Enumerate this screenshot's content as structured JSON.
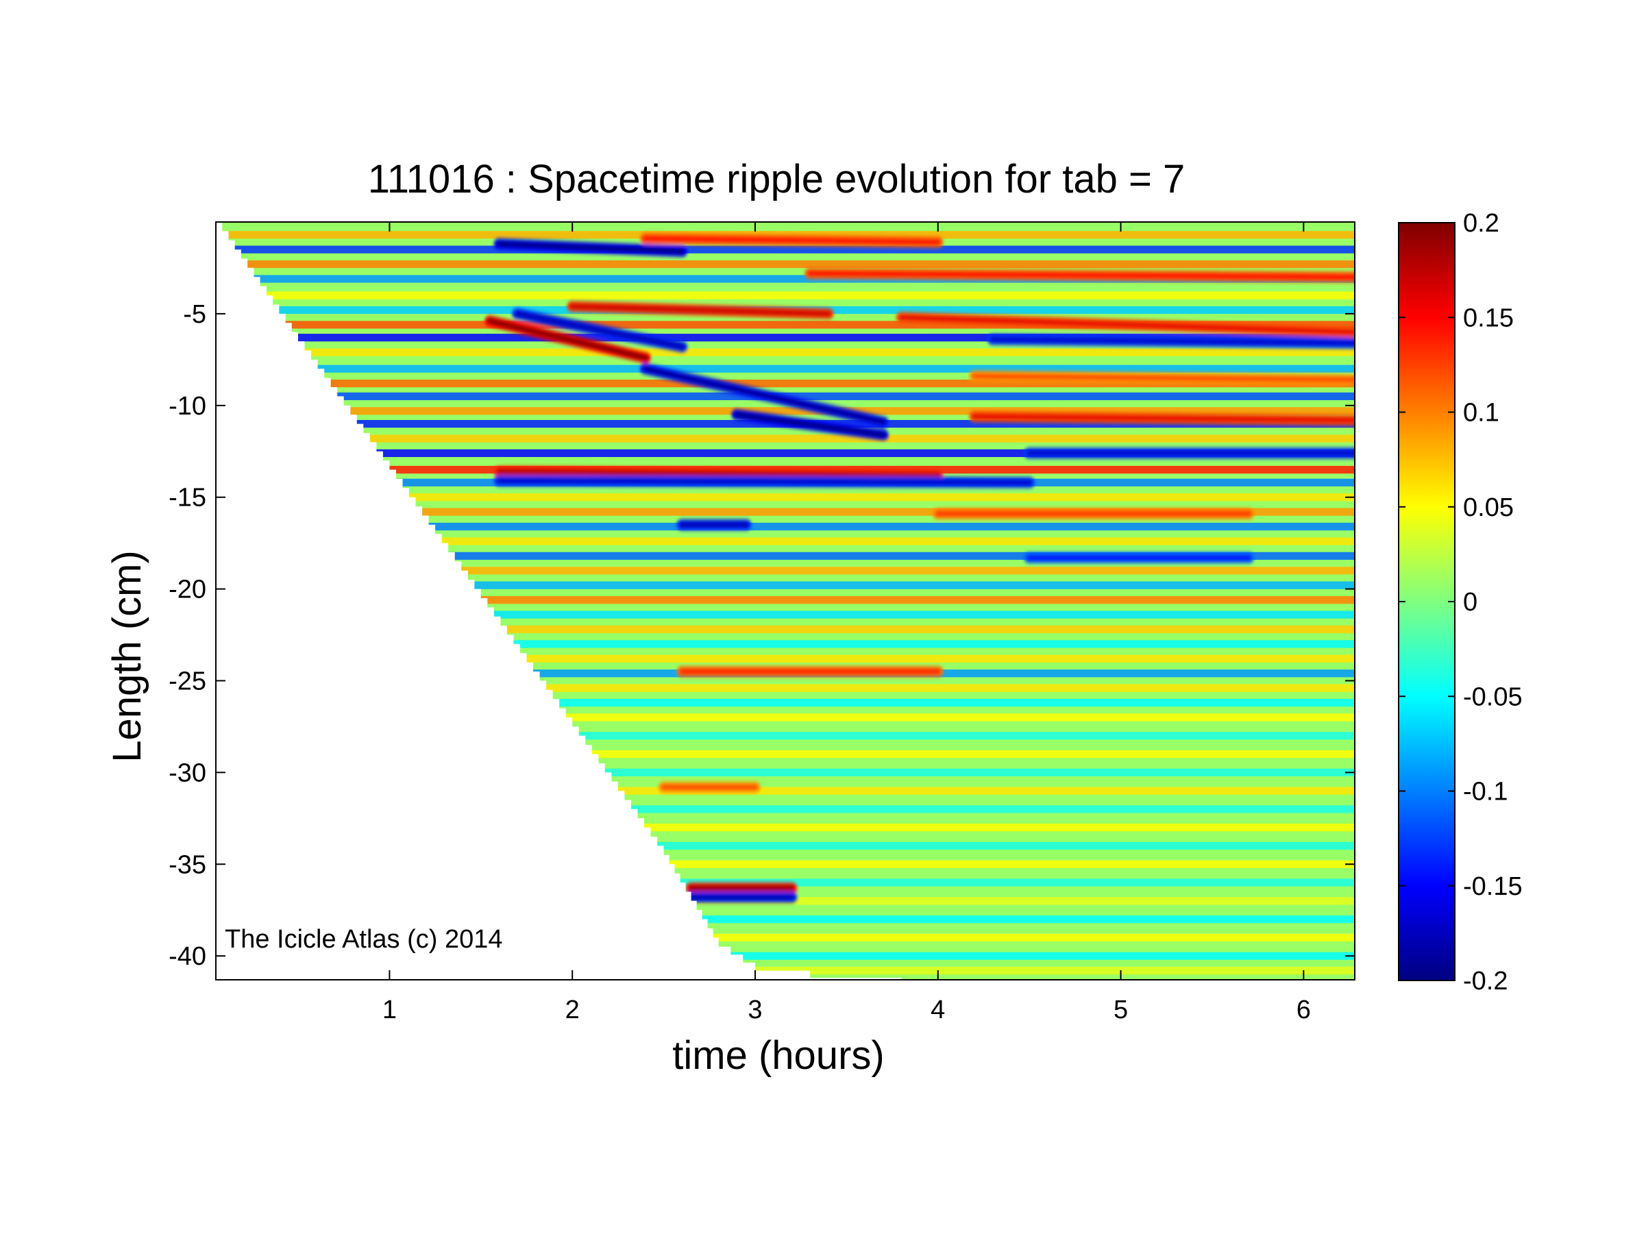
{
  "chart_data": {
    "type": "heatmap",
    "title": "111016 : Spacetime ripple evolution for tab = 7",
    "xlabel": "time (hours)",
    "ylabel": "Length (cm)",
    "xlim": [
      0.05,
      6.28
    ],
    "ylim": [
      -41.3,
      0
    ],
    "xticks": [
      1,
      2,
      3,
      4,
      5,
      6
    ],
    "yticks": [
      -5,
      -10,
      -15,
      -20,
      -25,
      -30,
      -35,
      -40
    ],
    "colormap": "jet",
    "clim": [
      -0.2,
      0.2
    ],
    "colorbar_ticks": [
      0.2,
      0.15,
      0.1,
      0.05,
      0,
      -0.05,
      -0.1,
      -0.15,
      -0.2
    ],
    "colorbar_tick_labels": [
      "0.2",
      "0.15",
      "0.1",
      "0.05",
      "0",
      "-0.05",
      "-0.1",
      "-0.15",
      "-0.2"
    ],
    "annotation": "The Icicle Atlas (c) 2014",
    "grid": false,
    "icicle_tip_front": {
      "time_hours": [
        0.05,
        0.5,
        1.0,
        1.5,
        2.0,
        2.5,
        2.65,
        2.8,
        3.0,
        3.3,
        3.8
      ],
      "length_cm": [
        0,
        -6.5,
        -13.5,
        -20.5,
        -27.5,
        -34.5,
        -37.0,
        -39.5,
        -40.8,
        -41.2,
        -41.3
      ]
    },
    "ripple_bands": [
      {
        "length_cm": -0.7,
        "amplitude": 0.08
      },
      {
        "length_cm": -1.5,
        "amplitude": -0.13
      },
      {
        "length_cm": -2.3,
        "amplitude": 0.1
      },
      {
        "length_cm": -3.1,
        "amplitude": -0.09
      },
      {
        "length_cm": -4.0,
        "amplitude": 0.05
      },
      {
        "length_cm": -4.8,
        "amplitude": -0.07
      },
      {
        "length_cm": -5.6,
        "amplitude": 0.12
      },
      {
        "length_cm": -6.3,
        "amplitude": -0.15
      },
      {
        "length_cm": -7.1,
        "amplitude": 0.06
      },
      {
        "length_cm": -8.0,
        "amplitude": -0.08
      },
      {
        "length_cm": -8.8,
        "amplitude": 0.11
      },
      {
        "length_cm": -9.5,
        "amplitude": -0.12
      },
      {
        "length_cm": -10.3,
        "amplitude": 0.09
      },
      {
        "length_cm": -11.0,
        "amplitude": -0.14
      },
      {
        "length_cm": -11.8,
        "amplitude": 0.07
      },
      {
        "length_cm": -12.6,
        "amplitude": -0.15
      },
      {
        "length_cm": -13.5,
        "amplitude": 0.14
      },
      {
        "length_cm": -14.2,
        "amplitude": -0.1
      },
      {
        "length_cm": -15.0,
        "amplitude": 0.06
      },
      {
        "length_cm": -15.8,
        "amplitude": 0.09
      },
      {
        "length_cm": -16.6,
        "amplitude": -0.1
      },
      {
        "length_cm": -17.4,
        "amplitude": 0.06
      },
      {
        "length_cm": -18.2,
        "amplitude": -0.11
      },
      {
        "length_cm": -19.0,
        "amplitude": 0.08
      },
      {
        "length_cm": -19.8,
        "amplitude": -0.08
      },
      {
        "length_cm": -20.6,
        "amplitude": 0.1
      },
      {
        "length_cm": -21.4,
        "amplitude": -0.06
      },
      {
        "length_cm": -22.2,
        "amplitude": 0.07
      },
      {
        "length_cm": -23.0,
        "amplitude": -0.05
      },
      {
        "length_cm": -23.8,
        "amplitude": 0.06
      },
      {
        "length_cm": -24.6,
        "amplitude": -0.09
      },
      {
        "length_cm": -25.4,
        "amplitude": 0.06
      },
      {
        "length_cm": -26.2,
        "amplitude": -0.05
      },
      {
        "length_cm": -27.0,
        "amplitude": 0.05
      },
      {
        "length_cm": -28.0,
        "amplitude": -0.04
      },
      {
        "length_cm": -29.0,
        "amplitude": 0.05
      },
      {
        "length_cm": -30.0,
        "amplitude": -0.04
      },
      {
        "length_cm": -31.0,
        "amplitude": 0.06
      },
      {
        "length_cm": -32.0,
        "amplitude": -0.04
      },
      {
        "length_cm": -33.0,
        "amplitude": 0.05
      },
      {
        "length_cm": -34.0,
        "amplitude": -0.04
      },
      {
        "length_cm": -35.0,
        "amplitude": 0.05
      },
      {
        "length_cm": -36.0,
        "amplitude": -0.04
      },
      {
        "length_cm": -37.0,
        "amplitude": 0.04
      },
      {
        "length_cm": -38.0,
        "amplitude": -0.05
      },
      {
        "length_cm": -39.0,
        "amplitude": 0.05
      },
      {
        "length_cm": -40.0,
        "amplitude": -0.05
      },
      {
        "length_cm": -40.8,
        "amplitude": 0.04
      }
    ],
    "ripple_streaks": [
      {
        "t_start": 1.55,
        "t_end": 2.4,
        "length_start_cm": -5.4,
        "length_end_cm": -7.4,
        "amplitude": 0.2
      },
      {
        "t_start": 1.7,
        "t_end": 2.6,
        "length_start_cm": -5.0,
        "length_end_cm": -6.8,
        "amplitude": -0.18
      },
      {
        "t_start": 2.0,
        "t_end": 3.4,
        "length_start_cm": -4.6,
        "length_end_cm": -5.0,
        "amplitude": 0.17
      },
      {
        "t_start": 2.4,
        "t_end": 3.7,
        "length_start_cm": -8.0,
        "length_end_cm": -10.9,
        "amplitude": -0.19
      },
      {
        "t_start": 2.9,
        "t_end": 3.7,
        "length_start_cm": -10.5,
        "length_end_cm": -11.6,
        "amplitude": -0.2
      },
      {
        "t_start": 3.8,
        "t_end": 6.28,
        "length_start_cm": -5.2,
        "length_end_cm": -6.0,
        "amplitude": 0.16
      },
      {
        "t_start": 4.3,
        "t_end": 6.28,
        "length_start_cm": -6.4,
        "length_end_cm": -6.6,
        "amplitude": -0.17
      },
      {
        "t_start": 1.6,
        "t_end": 2.6,
        "length_start_cm": -1.2,
        "length_end_cm": -1.6,
        "amplitude": -0.2
      },
      {
        "t_start": 2.4,
        "t_end": 4.0,
        "length_start_cm": -0.9,
        "length_end_cm": -1.1,
        "amplitude": 0.15
      },
      {
        "t_start": 1.6,
        "t_end": 4.0,
        "length_start_cm": -13.6,
        "length_end_cm": -13.8,
        "amplitude": 0.18
      },
      {
        "t_start": 1.6,
        "t_end": 4.5,
        "length_start_cm": -14.1,
        "length_end_cm": -14.2,
        "amplitude": -0.17
      },
      {
        "t_start": 2.6,
        "t_end": 2.95,
        "length_start_cm": -16.5,
        "length_end_cm": -16.5,
        "amplitude": -0.18
      },
      {
        "t_start": 2.65,
        "t_end": 3.2,
        "length_start_cm": -36.3,
        "length_end_cm": -36.3,
        "amplitude": 0.19
      },
      {
        "t_start": 2.65,
        "t_end": 3.2,
        "length_start_cm": -36.8,
        "length_end_cm": -36.8,
        "amplitude": -0.18
      },
      {
        "t_start": 3.3,
        "t_end": 6.28,
        "length_start_cm": -2.8,
        "length_end_cm": -3.0,
        "amplitude": 0.15
      },
      {
        "t_start": 4.2,
        "t_end": 6.28,
        "length_start_cm": -8.4,
        "length_end_cm": -8.6,
        "amplitude": 0.12
      },
      {
        "t_start": 4.2,
        "t_end": 6.28,
        "length_start_cm": -10.6,
        "length_end_cm": -10.8,
        "amplitude": 0.16
      },
      {
        "t_start": 4.5,
        "t_end": 6.28,
        "length_start_cm": -12.6,
        "length_end_cm": -12.6,
        "amplitude": -0.17
      },
      {
        "t_start": 4.0,
        "t_end": 5.7,
        "length_start_cm": -15.9,
        "length_end_cm": -15.9,
        "amplitude": 0.13
      },
      {
        "t_start": 4.5,
        "t_end": 5.7,
        "length_start_cm": -18.3,
        "length_end_cm": -18.3,
        "amplitude": -0.15
      },
      {
        "t_start": 2.6,
        "t_end": 4.0,
        "length_start_cm": -24.5,
        "length_end_cm": -24.5,
        "amplitude": 0.14
      },
      {
        "t_start": 2.5,
        "t_end": 3.0,
        "length_start_cm": -30.8,
        "length_end_cm": -30.8,
        "amplitude": 0.12
      }
    ]
  }
}
